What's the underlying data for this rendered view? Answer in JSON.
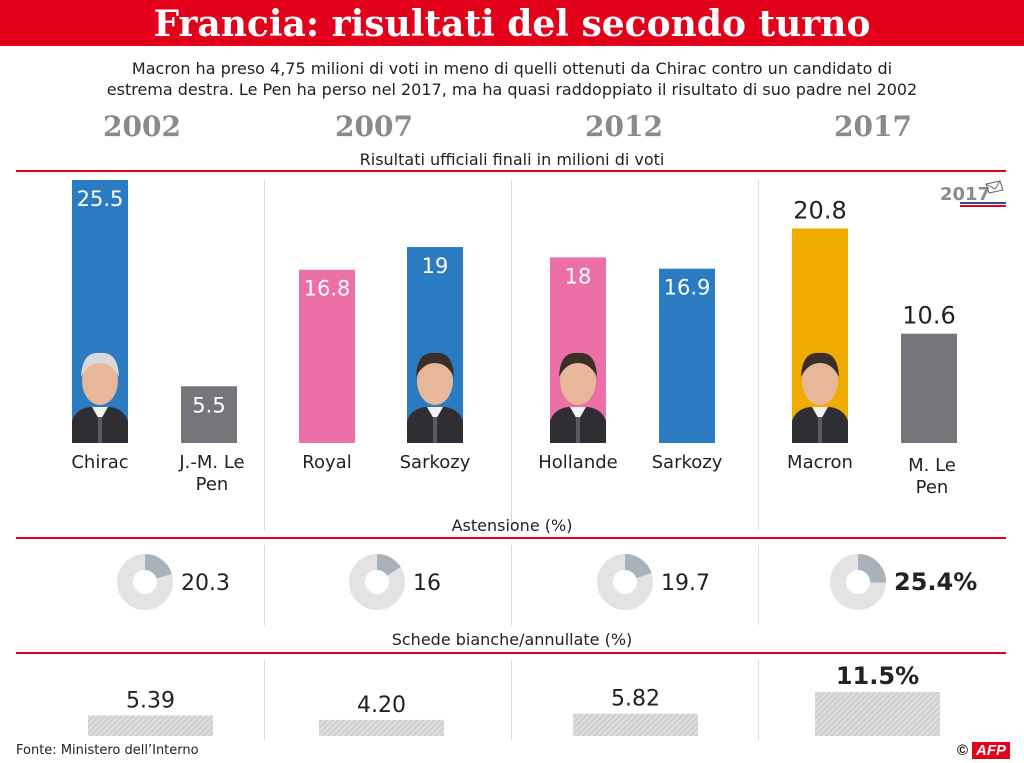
{
  "title": "Francia: risultati del secondo turno",
  "subtitle_line1": "Macron ha preso 4,75 milioni di voti in meno di quelli ottenuti da Chirac contro un candidato di",
  "subtitle_line2": "estrema destra. Le Pen ha perso nel 2017, ma ha quasi raddoppiato il risultato di suo padre nel 2002",
  "years": [
    "2002",
    "2007",
    "2012",
    "2017"
  ],
  "section_votes": "Risultati ufficiali finali in milioni di voti",
  "section_abstention": "Astensione (%)",
  "section_blank": "Schede bianche/annullate (%)",
  "source": "Fonte: Ministero dell’Interno",
  "credit": "©",
  "credit_logo": "AFP",
  "logo_text": "2017",
  "colors": {
    "red": "#e3001b",
    "blue": "#2b7bc2",
    "pink": "#ec6fa7",
    "orange": "#efab00",
    "gray": "#76767a",
    "donut_light": "#e3e3e3",
    "donut_dark": "#a9b1bb"
  },
  "chart_data": [
    {
      "type": "bar",
      "title": "Risultati ufficiali finali in milioni di voti",
      "groups": [
        {
          "year": "2002",
          "bars": [
            {
              "candidate": "Chirac",
              "value": 25.5,
              "color": "blue",
              "label": "25.5",
              "label_inside": true,
              "photo": "chirac"
            },
            {
              "candidate": "J.-M. Le Pen",
              "value": 5.5,
              "color": "gray",
              "label": "5.5",
              "label_inside": true
            }
          ]
        },
        {
          "year": "2007",
          "bars": [
            {
              "candidate": "Royal",
              "value": 16.8,
              "color": "pink",
              "label": "16.8",
              "label_inside": true
            },
            {
              "candidate": "Sarkozy",
              "value": 19,
              "color": "blue",
              "label": "19",
              "label_inside": true,
              "photo": "sarkozy"
            }
          ]
        },
        {
          "year": "2012",
          "bars": [
            {
              "candidate": "Hollande",
              "value": 18,
              "color": "pink",
              "label": "18",
              "label_inside": true,
              "photo": "hollande"
            },
            {
              "candidate": "Sarkozy",
              "value": 16.9,
              "color": "blue",
              "label": "16.9",
              "label_inside": true
            }
          ]
        },
        {
          "year": "2017",
          "bars": [
            {
              "candidate": "Macron",
              "value": 20.8,
              "color": "orange",
              "label": "20.8",
              "label_inside": false,
              "photo": "macron"
            },
            {
              "candidate": "M. Le Pen",
              "value": 10.6,
              "color": "gray",
              "label": "10.6",
              "label_inside": false
            }
          ]
        }
      ]
    },
    {
      "type": "pie",
      "title": "Astensione (%)",
      "values": [
        {
          "year": "2002",
          "value": 20.3,
          "label": "20.3",
          "bold": false
        },
        {
          "year": "2007",
          "value": 16,
          "label": "16",
          "bold": false
        },
        {
          "year": "2012",
          "value": 19.7,
          "label": "19.7",
          "bold": false
        },
        {
          "year": "2017",
          "value": 25.4,
          "label": "25.4%",
          "bold": true
        }
      ]
    },
    {
      "type": "bar",
      "title": "Schede bianche/annullate (%)",
      "values": [
        {
          "year": "2002",
          "value": 5.39,
          "label": "5.39",
          "bold": false
        },
        {
          "year": "2007",
          "value": 4.2,
          "label": "4.20",
          "bold": false
        },
        {
          "year": "2012",
          "value": 5.82,
          "label": "5.82",
          "bold": false
        },
        {
          "year": "2017",
          "value": 11.5,
          "label": "11.5%",
          "bold": true
        }
      ]
    }
  ]
}
